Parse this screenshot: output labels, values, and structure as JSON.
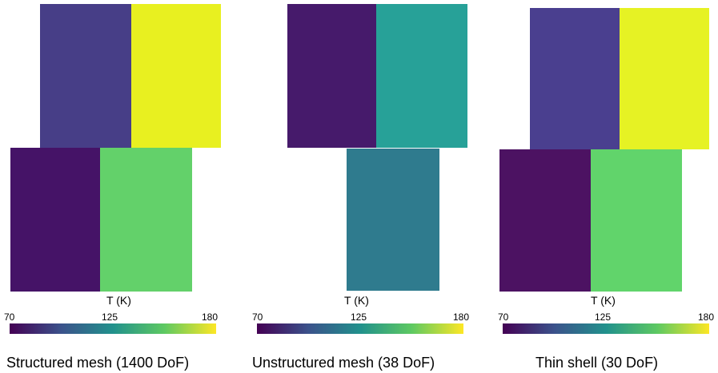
{
  "colorbar": {
    "title": "T (K)",
    "min": "70",
    "mid": "125",
    "max": "180"
  },
  "panels": [
    {
      "caption": "Structured mesh (1400 DoF)",
      "top_block": {
        "left_color": "#473e87",
        "right_color": "#e8f020"
      },
      "bottom_block": {
        "left_color": "#451367",
        "right_color": "#63d16a"
      }
    },
    {
      "caption": "Unstructured mesh (38 DoF)",
      "top_block": {
        "left_color": "#461a6b",
        "right_color": "#27a198"
      },
      "bottom_block": {
        "left_color": "#2f7b8e",
        "right_color": "#2f7b8e"
      }
    },
    {
      "caption": "Thin shell (30 DoF)",
      "top_block": {
        "left_color": "#4a3f8f",
        "right_color": "#e6f224"
      },
      "bottom_block": {
        "left_color": "#4c1262",
        "right_color": "#61d46b"
      }
    }
  ]
}
